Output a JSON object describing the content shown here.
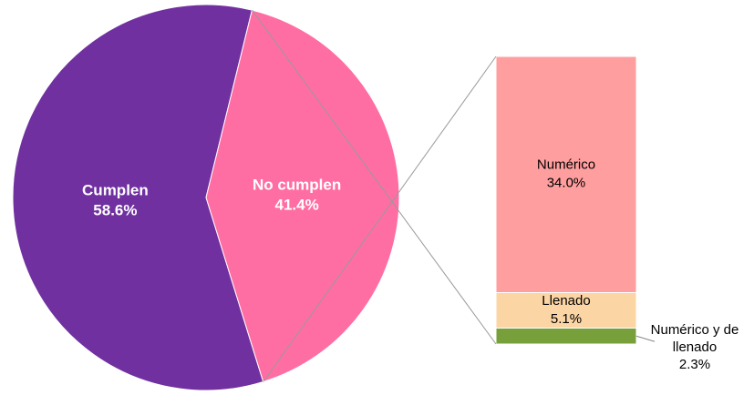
{
  "chart_data": [
    {
      "type": "pie",
      "categories": [
        "Cumplen",
        "No cumplen"
      ],
      "values": [
        58.6,
        41.4
      ],
      "value_labels": [
        "58.6%",
        "41.4%"
      ],
      "colors": [
        "#7030a0",
        "#ff6ea3"
      ]
    },
    {
      "type": "bar",
      "stacked": true,
      "series": [
        {
          "name": "Numérico y de llenado",
          "color": "#77a03a",
          "values": [
            2.3
          ],
          "value_labels": [
            "2.3%"
          ]
        },
        {
          "name": "Llenado",
          "color": "#fcd5a5",
          "values": [
            5.1
          ],
          "value_labels": [
            "5.1%"
          ]
        },
        {
          "name": "Numérico",
          "color": "#ff9e9e",
          "values": [
            34.0
          ],
          "value_labels": [
            "34.0%"
          ]
        }
      ]
    }
  ]
}
